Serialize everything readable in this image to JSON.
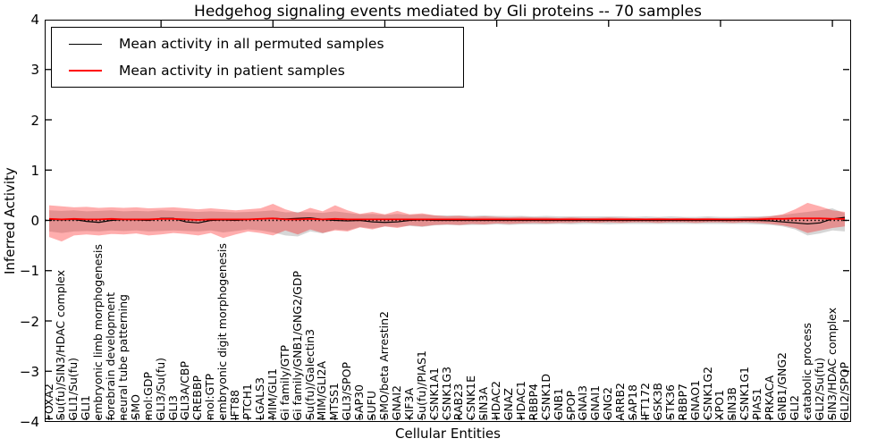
{
  "title": "Hedgehog signaling events mediated by Gli proteins -- 70 samples",
  "axes": {
    "ylabel": "Inferred Activity",
    "xlabel": "Cellular Entities",
    "ytick_labels": [
      "4",
      "3",
      "2",
      "1",
      "0",
      "−1",
      "−2",
      "−3",
      "−4"
    ],
    "ytick_values": [
      4,
      3,
      2,
      1,
      0,
      -1,
      -2,
      -3,
      -4
    ]
  },
  "legend": {
    "items": [
      {
        "label": "Mean activity in all permuted samples",
        "color": "#000000",
        "weight": 1.6
      },
      {
        "label": "Mean activity in patient samples",
        "color": "#ff0000",
        "weight": 2.0
      }
    ]
  },
  "chart_data": {
    "type": "line",
    "title": "Hedgehog signaling events mediated by Gli proteins -- 70 samples",
    "xlabel": "Cellular Entities",
    "ylabel": "Inferred Activity",
    "ylim": [
      -4,
      4
    ],
    "grid": false,
    "zero_line": "dotted",
    "legend_position": "upper left",
    "categories": [
      "FOXA2",
      "Su(fu)/SIN3/HDAC complex",
      "GLI1/Su(fu)",
      "GLI1",
      "embryonic limb morphogenesis",
      "forebrain development",
      "neural tube patterning",
      "SMO",
      "mol:GDP",
      "GLI3/Su(fu)",
      "GLI3",
      "GLI3A/CBP",
      "CREBBP",
      "mol:GTP",
      "embryonic digit morphogenesis",
      "IFT88",
      "PTCH1",
      "LGALS3",
      "MIM/GLI1",
      "Gi family/GTP",
      "Gi family/GNB1/GNG2/GDP",
      "Su(fu)/Galectin3",
      "MIM/GLI2A",
      "MTSS1",
      "GLI3/SPOP",
      "SAP30",
      "SUFU",
      "SMO/beta Arrestin2",
      "GNAI2",
      "KIF3A",
      "Su(fu)/PIAS1",
      "CSNK1A1",
      "CSNK1G3",
      "RAB23",
      "CSNK1E",
      "SIN3A",
      "HDAC2",
      "GNAZ",
      "HDAC1",
      "RBBP4",
      "CSNK1D",
      "GNB1",
      "SPOP",
      "GNAI3",
      "GNAI1",
      "GNG2",
      "ARRB2",
      "SAP18",
      "IFT172",
      "GSK3B",
      "STK36",
      "RBBP7",
      "GNAO1",
      "CSNK1G2",
      "XPO1",
      "SIN3B",
      "CSNK1G1",
      "PIAS1",
      "PRKACA",
      "GNB1/GNG2",
      "GLI2",
      "catabolic process",
      "GLI2/Su(fu)",
      "SIN3/HDAC complex",
      "GLI2/SPOP"
    ],
    "series": [
      {
        "name": "Mean activity in all permuted samples",
        "color": "#000000",
        "line_width": 1.2,
        "band_color": "#999999",
        "band_opacity": 0.4,
        "values": [
          0.02,
          0.01,
          0.02,
          -0.02,
          -0.04,
          0.0,
          0.02,
          0.01,
          0.0,
          0.04,
          0.04,
          -0.03,
          -0.05,
          0.0,
          0.01,
          0.0,
          0.02,
          0.03,
          0.04,
          0.03,
          0.04,
          0.05,
          0.02,
          0.0,
          -0.01,
          0.0,
          -0.03,
          -0.04,
          -0.03,
          0.0,
          0.01,
          0.0,
          0.0,
          0.0,
          0.0,
          0.0,
          0.0,
          0.0,
          0.0,
          0.0,
          0.0,
          0.0,
          0.0,
          0.0,
          0.0,
          0.0,
          0.0,
          0.0,
          0.0,
          0.0,
          0.0,
          0.0,
          0.0,
          0.0,
          0.0,
          0.0,
          0.0,
          0.0,
          -0.01,
          -0.03,
          -0.05,
          -0.07,
          -0.05,
          0.03,
          0.06
        ],
        "band_upper": [
          0.2,
          0.19,
          0.2,
          0.18,
          0.19,
          0.2,
          0.18,
          0.19,
          0.18,
          0.2,
          0.19,
          0.18,
          0.17,
          0.18,
          0.17,
          0.16,
          0.17,
          0.18,
          0.2,
          0.16,
          0.17,
          0.16,
          0.15,
          0.18,
          0.15,
          0.12,
          0.13,
          0.11,
          0.13,
          0.11,
          0.12,
          0.1,
          0.1,
          0.1,
          0.09,
          0.1,
          0.09,
          0.09,
          0.09,
          0.08,
          0.09,
          0.08,
          0.08,
          0.08,
          0.08,
          0.08,
          0.08,
          0.07,
          0.08,
          0.07,
          0.08,
          0.07,
          0.07,
          0.08,
          0.07,
          0.07,
          0.08,
          0.08,
          0.09,
          0.11,
          0.14,
          0.17,
          0.2,
          0.24,
          0.14
        ],
        "band_lower": [
          -0.22,
          -0.25,
          -0.22,
          -0.21,
          -0.22,
          -0.2,
          -0.21,
          -0.2,
          -0.22,
          -0.21,
          -0.2,
          -0.21,
          -0.22,
          -0.2,
          -0.24,
          -0.21,
          -0.18,
          -0.2,
          -0.24,
          -0.3,
          -0.32,
          -0.22,
          -0.26,
          -0.18,
          -0.2,
          -0.13,
          -0.16,
          -0.12,
          -0.13,
          -0.11,
          -0.13,
          -0.1,
          -0.09,
          -0.1,
          -0.09,
          -0.09,
          -0.08,
          -0.09,
          -0.08,
          -0.08,
          -0.08,
          -0.07,
          -0.08,
          -0.07,
          -0.07,
          -0.08,
          -0.07,
          -0.07,
          -0.07,
          -0.07,
          -0.07,
          -0.07,
          -0.07,
          -0.07,
          -0.07,
          -0.07,
          -0.07,
          -0.08,
          -0.09,
          -0.12,
          -0.18,
          -0.3,
          -0.26,
          -0.2,
          -0.22
        ]
      },
      {
        "name": "Mean activity in patient samples",
        "color": "#ff0000",
        "line_width": 1.8,
        "band_color": "#ff0000",
        "band_opacity": 0.32,
        "values": [
          0.03,
          0.02,
          0.03,
          0.02,
          0.02,
          0.03,
          0.02,
          0.02,
          0.02,
          0.03,
          0.03,
          0.02,
          0.01,
          0.02,
          0.02,
          0.02,
          0.02,
          0.03,
          0.04,
          0.02,
          0.02,
          0.03,
          0.02,
          0.03,
          0.02,
          0.02,
          0.02,
          0.02,
          0.02,
          0.02,
          0.02,
          0.02,
          0.02,
          0.02,
          0.02,
          0.02,
          0.02,
          0.02,
          0.02,
          0.02,
          0.02,
          0.02,
          0.02,
          0.02,
          0.02,
          0.02,
          0.02,
          0.02,
          0.02,
          0.02,
          0.02,
          0.02,
          0.02,
          0.02,
          0.02,
          0.02,
          0.02,
          0.02,
          0.03,
          0.03,
          0.04,
          0.04,
          0.04,
          0.03,
          0.03
        ],
        "band_upper": [
          0.3,
          0.28,
          0.26,
          0.27,
          0.25,
          0.26,
          0.25,
          0.26,
          0.24,
          0.25,
          0.26,
          0.24,
          0.22,
          0.24,
          0.22,
          0.2,
          0.22,
          0.24,
          0.33,
          0.22,
          0.15,
          0.25,
          0.18,
          0.3,
          0.2,
          0.13,
          0.17,
          0.12,
          0.19,
          0.12,
          0.14,
          0.1,
          0.08,
          0.09,
          0.07,
          0.08,
          0.07,
          0.06,
          0.07,
          0.06,
          0.06,
          0.05,
          0.06,
          0.05,
          0.05,
          0.06,
          0.05,
          0.05,
          0.04,
          0.05,
          0.04,
          0.05,
          0.04,
          0.05,
          0.04,
          0.04,
          0.05,
          0.06,
          0.08,
          0.12,
          0.22,
          0.35,
          0.28,
          0.2,
          0.17
        ],
        "band_lower": [
          -0.33,
          -0.42,
          -0.3,
          -0.28,
          -0.3,
          -0.27,
          -0.28,
          -0.26,
          -0.3,
          -0.28,
          -0.25,
          -0.27,
          -0.3,
          -0.25,
          -0.35,
          -0.28,
          -0.22,
          -0.25,
          -0.3,
          -0.2,
          -0.28,
          -0.18,
          -0.25,
          -0.2,
          -0.22,
          -0.14,
          -0.18,
          -0.12,
          -0.15,
          -0.1,
          -0.12,
          -0.09,
          -0.08,
          -0.09,
          -0.07,
          -0.08,
          -0.06,
          -0.07,
          -0.06,
          -0.05,
          -0.06,
          -0.05,
          -0.05,
          -0.04,
          -0.05,
          -0.04,
          -0.05,
          -0.04,
          -0.04,
          -0.05,
          -0.04,
          -0.04,
          -0.05,
          -0.04,
          -0.04,
          -0.05,
          -0.04,
          -0.05,
          -0.07,
          -0.1,
          -0.15,
          -0.25,
          -0.2,
          -0.15,
          -0.12
        ]
      }
    ]
  }
}
